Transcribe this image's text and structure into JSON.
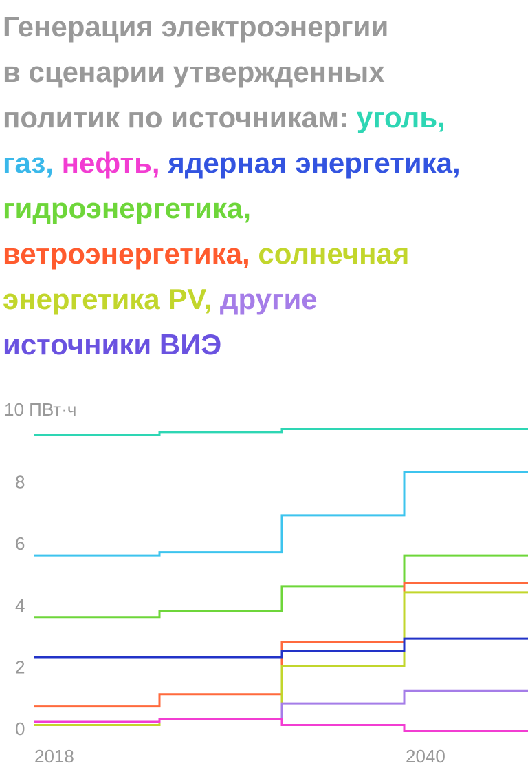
{
  "title_parts": [
    {
      "text": "Генерация электроэнергии",
      "color": "#999999"
    },
    {
      "text": "в сценарии утвержденных",
      "color": "#999999"
    },
    {
      "text": "политик по источникам: ",
      "color": "#999999"
    },
    {
      "text": "уголь,",
      "color": "#2ed6b4"
    },
    {
      "text": "газ,",
      "color": "#3ab8ea"
    },
    {
      "text": " нефть,",
      "color": "#f23dd2"
    },
    {
      "text": " ядерная энергетика,",
      "color": "#3354e0"
    },
    {
      "text": "гидроэнергетика,",
      "color": "#6ed63a"
    },
    {
      "text": "ветроэнергетика,",
      "color": "#ff5b2e"
    },
    {
      "text": " солнечная",
      "color": "#c2d62c"
    },
    {
      "text": "энергетика PV,",
      "color": "#c2d62c"
    },
    {
      "text": " другие",
      "color": "#a57de8"
    },
    {
      "text": "источники ВИЭ",
      "color": "#6a52e0"
    }
  ],
  "chart_data": {
    "type": "line",
    "step": true,
    "unit_label": "ПВт·ч",
    "y_ticks": [
      "10 ПВт·ч",
      "8",
      "6",
      "4",
      "2",
      "0"
    ],
    "y_tick_values": [
      10,
      8,
      6,
      4,
      2,
      0
    ],
    "x_tick_labels": [
      "2018",
      "2040"
    ],
    "ylim": [
      0,
      10
    ],
    "series": [
      {
        "key": "coal",
        "color": "#2ed6b4",
        "values": [
          9.5,
          9.6,
          9.7,
          9.7
        ]
      },
      {
        "key": "gas",
        "color": "#3dc4ee",
        "values": [
          5.6,
          5.7,
          6.9,
          8.3
        ]
      },
      {
        "key": "hydro",
        "color": "#6ed63a",
        "values": [
          3.6,
          3.8,
          4.6,
          5.6
        ]
      },
      {
        "key": "wind",
        "color": "#ff6a3d",
        "values": [
          0.7,
          1.1,
          2.8,
          4.7
        ]
      },
      {
        "key": "solar",
        "color": "#c2d62c",
        "values": [
          0.1,
          0.3,
          2.0,
          4.4
        ]
      },
      {
        "key": "nuclear",
        "color": "#2233c8",
        "values": [
          2.3,
          2.3,
          2.5,
          2.9
        ]
      },
      {
        "key": "other",
        "color": "#a57de8",
        "values": [
          0.2,
          0.3,
          0.8,
          1.2
        ]
      },
      {
        "key": "oil",
        "color": "#f23dd2",
        "values": [
          0.2,
          0.3,
          0.1,
          -0.1
        ]
      }
    ],
    "grid": false,
    "legend": "title"
  }
}
